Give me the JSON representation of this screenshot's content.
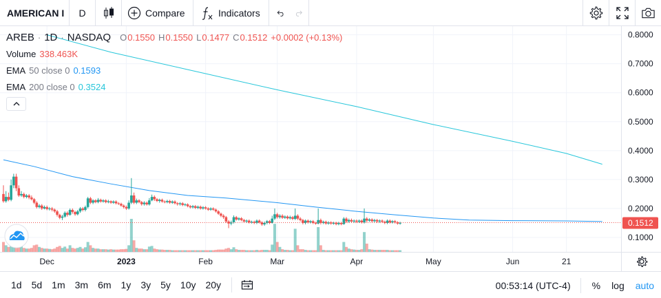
{
  "toolbar": {
    "symbol": "AMERICAN I",
    "interval": "D",
    "compare_label": "Compare",
    "indicators_label": "Indicators"
  },
  "legend": {
    "symbol": "AREB",
    "interval": "1D",
    "exchange": "NASDAQ",
    "o_key": "O",
    "o_val": "0.1550",
    "h_key": "H",
    "h_val": "0.1550",
    "l_key": "L",
    "l_val": "0.1477",
    "c_key": "C",
    "c_val": "0.1512",
    "change": "+0.0002 (+0.13%)",
    "volume_name": "Volume",
    "volume_val": "338.463K",
    "ema50_name": "EMA",
    "ema50_params": "50 close 0",
    "ema50_val": "0.1593",
    "ema200_name": "EMA",
    "ema200_params": "200 close 0",
    "ema200_val": "0.3524"
  },
  "colors": {
    "up": "#26a69a",
    "down": "#ef5350",
    "ema50": "#2196f3",
    "ema200": "#26c6da",
    "price_label_bg": "#ef5350"
  },
  "chart_data": {
    "type": "candlestick",
    "ylim": [
      0.05,
      0.83
    ],
    "y_ticks": [
      "0.8000",
      "0.7000",
      "0.6000",
      "0.5000",
      "0.4000",
      "0.3000",
      "0.2000",
      "0.1000"
    ],
    "y_tick_values": [
      0.8,
      0.7,
      0.6,
      0.5,
      0.4,
      0.3,
      0.2,
      0.1
    ],
    "x_ticks": [
      "Dec",
      "2023",
      "Feb",
      "Mar",
      "Apr",
      "May",
      "Jun",
      "21"
    ],
    "x_tick_days": [
      5,
      36,
      67,
      95,
      126,
      156,
      187,
      208
    ],
    "x_range_days": [
      -12,
      228
    ],
    "last_price": 0.1512,
    "last_price_label": "0.1512",
    "ema200_points": [
      [
        5,
        0.8
      ],
      [
        30,
        0.74
      ],
      [
        60,
        0.68
      ],
      [
        95,
        0.61
      ],
      [
        126,
        0.552
      ],
      [
        156,
        0.49
      ],
      [
        187,
        0.432
      ],
      [
        208,
        0.39
      ],
      [
        222,
        0.353
      ]
    ],
    "ema50_points": [
      [
        -12,
        0.368
      ],
      [
        0,
        0.345
      ],
      [
        15,
        0.31
      ],
      [
        30,
        0.285
      ],
      [
        45,
        0.262
      ],
      [
        60,
        0.245
      ],
      [
        75,
        0.236
      ],
      [
        95,
        0.22
      ],
      [
        110,
        0.205
      ],
      [
        126,
        0.19
      ],
      [
        141,
        0.178
      ],
      [
        156,
        0.167
      ],
      [
        170,
        0.16
      ],
      [
        187,
        0.158
      ],
      [
        208,
        0.157
      ],
      [
        222,
        0.155
      ]
    ],
    "candles": [
      [
        -12,
        0.25,
        0.225,
        0.28,
        0.22,
        0.3
      ],
      [
        -11,
        0.225,
        0.24,
        0.26,
        0.22,
        0.2
      ],
      [
        -10,
        0.24,
        0.23,
        0.255,
        0.225,
        0.15
      ],
      [
        -9,
        0.23,
        0.28,
        0.3,
        0.225,
        0.45
      ],
      [
        -8,
        0.28,
        0.31,
        0.32,
        0.27,
        0.6
      ],
      [
        -7,
        0.31,
        0.27,
        0.32,
        0.26,
        0.4
      ],
      [
        -6,
        0.27,
        0.245,
        0.28,
        0.24,
        0.25
      ],
      [
        -5,
        0.245,
        0.25,
        0.26,
        0.24,
        0.18
      ],
      [
        -4,
        0.25,
        0.24,
        0.255,
        0.235,
        0.12
      ],
      [
        -3,
        0.24,
        0.245,
        0.25,
        0.235,
        0.1
      ],
      [
        -2,
        0.245,
        0.238,
        0.25,
        0.232,
        0.1
      ],
      [
        -1,
        0.238,
        0.232,
        0.245,
        0.228,
        0.12
      ],
      [
        0,
        0.232,
        0.22,
        0.236,
        0.215,
        0.2
      ],
      [
        1,
        0.22,
        0.205,
        0.225,
        0.2,
        0.22
      ],
      [
        2,
        0.205,
        0.21,
        0.215,
        0.2,
        0.15
      ],
      [
        3,
        0.21,
        0.2,
        0.215,
        0.195,
        0.12
      ],
      [
        4,
        0.2,
        0.205,
        0.21,
        0.197,
        0.1
      ],
      [
        5,
        0.205,
        0.198,
        0.21,
        0.194,
        0.1
      ],
      [
        6,
        0.198,
        0.2,
        0.205,
        0.193,
        0.09
      ],
      [
        7,
        0.2,
        0.196,
        0.205,
        0.19,
        0.08
      ],
      [
        8,
        0.196,
        0.19,
        0.2,
        0.185,
        0.1
      ],
      [
        9,
        0.19,
        0.178,
        0.195,
        0.172,
        0.15
      ],
      [
        10,
        0.178,
        0.168,
        0.182,
        0.163,
        0.18
      ],
      [
        11,
        0.168,
        0.172,
        0.178,
        0.16,
        0.12
      ],
      [
        12,
        0.172,
        0.185,
        0.19,
        0.168,
        0.16
      ],
      [
        13,
        0.185,
        0.178,
        0.19,
        0.172,
        0.1
      ],
      [
        14,
        0.178,
        0.195,
        0.2,
        0.175,
        0.2
      ],
      [
        15,
        0.195,
        0.188,
        0.2,
        0.182,
        0.12
      ],
      [
        16,
        0.188,
        0.18,
        0.192,
        0.175,
        0.1
      ],
      [
        17,
        0.18,
        0.19,
        0.195,
        0.176,
        0.12
      ],
      [
        18,
        0.19,
        0.2,
        0.205,
        0.185,
        0.15
      ],
      [
        19,
        0.2,
        0.195,
        0.205,
        0.19,
        0.1
      ],
      [
        20,
        0.195,
        0.205,
        0.21,
        0.19,
        0.14
      ],
      [
        21,
        0.205,
        0.235,
        0.24,
        0.2,
        0.3
      ],
      [
        22,
        0.235,
        0.22,
        0.24,
        0.215,
        0.2
      ],
      [
        23,
        0.22,
        0.228,
        0.232,
        0.215,
        0.12
      ],
      [
        24,
        0.228,
        0.222,
        0.232,
        0.218,
        0.1
      ],
      [
        25,
        0.222,
        0.23,
        0.236,
        0.218,
        0.1
      ],
      [
        26,
        0.23,
        0.224,
        0.234,
        0.22,
        0.08
      ],
      [
        27,
        0.224,
        0.228,
        0.232,
        0.22,
        0.08
      ],
      [
        28,
        0.228,
        0.222,
        0.232,
        0.218,
        0.08
      ],
      [
        29,
        0.222,
        0.225,
        0.23,
        0.218,
        0.07
      ],
      [
        30,
        0.225,
        0.22,
        0.228,
        0.216,
        0.08
      ],
      [
        31,
        0.22,
        0.224,
        0.228,
        0.216,
        0.07
      ],
      [
        32,
        0.224,
        0.218,
        0.228,
        0.214,
        0.07
      ],
      [
        33,
        0.218,
        0.216,
        0.222,
        0.212,
        0.07
      ],
      [
        34,
        0.216,
        0.21,
        0.22,
        0.206,
        0.08
      ],
      [
        35,
        0.21,
        0.205,
        0.214,
        0.2,
        0.08
      ],
      [
        36,
        0.205,
        0.2,
        0.21,
        0.195,
        0.09
      ],
      [
        37,
        0.2,
        0.22,
        0.228,
        0.196,
        0.2
      ],
      [
        38,
        0.22,
        0.245,
        0.305,
        0.215,
        1.0
      ],
      [
        39,
        0.245,
        0.22,
        0.255,
        0.215,
        0.35
      ],
      [
        40,
        0.22,
        0.228,
        0.234,
        0.215,
        0.12
      ],
      [
        41,
        0.228,
        0.222,
        0.232,
        0.218,
        0.1
      ],
      [
        42,
        0.222,
        0.215,
        0.226,
        0.21,
        0.1
      ],
      [
        43,
        0.215,
        0.22,
        0.225,
        0.21,
        0.08
      ],
      [
        44,
        0.22,
        0.214,
        0.224,
        0.21,
        0.08
      ],
      [
        45,
        0.214,
        0.228,
        0.236,
        0.21,
        0.16
      ],
      [
        46,
        0.228,
        0.24,
        0.248,
        0.225,
        0.18
      ],
      [
        47,
        0.24,
        0.232,
        0.245,
        0.226,
        0.1
      ],
      [
        48,
        0.232,
        0.226,
        0.236,
        0.222,
        0.08
      ],
      [
        49,
        0.226,
        0.23,
        0.234,
        0.22,
        0.07
      ],
      [
        50,
        0.23,
        0.224,
        0.234,
        0.22,
        0.07
      ],
      [
        51,
        0.224,
        0.222,
        0.228,
        0.218,
        0.06
      ],
      [
        52,
        0.222,
        0.226,
        0.23,
        0.218,
        0.06
      ],
      [
        53,
        0.226,
        0.22,
        0.23,
        0.216,
        0.06
      ],
      [
        54,
        0.22,
        0.224,
        0.228,
        0.216,
        0.05
      ],
      [
        55,
        0.224,
        0.218,
        0.228,
        0.214,
        0.05
      ],
      [
        56,
        0.218,
        0.215,
        0.222,
        0.21,
        0.05
      ],
      [
        57,
        0.215,
        0.218,
        0.222,
        0.21,
        0.05
      ],
      [
        58,
        0.218,
        0.212,
        0.222,
        0.208,
        0.05
      ],
      [
        59,
        0.212,
        0.214,
        0.218,
        0.208,
        0.05
      ],
      [
        60,
        0.214,
        0.208,
        0.218,
        0.204,
        0.05
      ],
      [
        61,
        0.208,
        0.204,
        0.212,
        0.2,
        0.05
      ],
      [
        62,
        0.204,
        0.208,
        0.212,
        0.2,
        0.05
      ],
      [
        63,
        0.208,
        0.202,
        0.212,
        0.198,
        0.05
      ],
      [
        64,
        0.202,
        0.206,
        0.21,
        0.198,
        0.05
      ],
      [
        65,
        0.206,
        0.2,
        0.21,
        0.196,
        0.05
      ],
      [
        66,
        0.2,
        0.204,
        0.208,
        0.196,
        0.05
      ],
      [
        67,
        0.204,
        0.2,
        0.208,
        0.196,
        0.05
      ],
      [
        68,
        0.2,
        0.196,
        0.204,
        0.192,
        0.05
      ],
      [
        69,
        0.196,
        0.2,
        0.204,
        0.192,
        0.05
      ],
      [
        70,
        0.2,
        0.196,
        0.204,
        0.192,
        0.05
      ],
      [
        71,
        0.196,
        0.19,
        0.2,
        0.186,
        0.06
      ],
      [
        72,
        0.19,
        0.182,
        0.194,
        0.178,
        0.07
      ],
      [
        73,
        0.182,
        0.175,
        0.186,
        0.17,
        0.07
      ],
      [
        74,
        0.175,
        0.17,
        0.18,
        0.164,
        0.07
      ],
      [
        75,
        0.17,
        0.155,
        0.174,
        0.15,
        0.1
      ],
      [
        76,
        0.155,
        0.148,
        0.16,
        0.132,
        0.12
      ],
      [
        77,
        0.148,
        0.152,
        0.158,
        0.142,
        0.08
      ],
      [
        78,
        0.152,
        0.17,
        0.176,
        0.148,
        0.14
      ],
      [
        79,
        0.17,
        0.162,
        0.174,
        0.158,
        0.08
      ],
      [
        80,
        0.162,
        0.166,
        0.17,
        0.158,
        0.06
      ],
      [
        81,
        0.166,
        0.16,
        0.17,
        0.156,
        0.06
      ],
      [
        82,
        0.16,
        0.155,
        0.164,
        0.15,
        0.06
      ],
      [
        83,
        0.155,
        0.158,
        0.162,
        0.15,
        0.05
      ],
      [
        84,
        0.158,
        0.152,
        0.162,
        0.148,
        0.05
      ],
      [
        85,
        0.152,
        0.154,
        0.158,
        0.148,
        0.05
      ],
      [
        86,
        0.154,
        0.15,
        0.158,
        0.146,
        0.05
      ],
      [
        87,
        0.15,
        0.158,
        0.162,
        0.146,
        0.06
      ],
      [
        88,
        0.158,
        0.152,
        0.162,
        0.148,
        0.05
      ],
      [
        89,
        0.152,
        0.145,
        0.156,
        0.14,
        0.06
      ],
      [
        90,
        0.145,
        0.15,
        0.155,
        0.14,
        0.06
      ],
      [
        91,
        0.15,
        0.156,
        0.16,
        0.145,
        0.06
      ],
      [
        92,
        0.156,
        0.15,
        0.16,
        0.146,
        0.05
      ],
      [
        93,
        0.15,
        0.165,
        0.175,
        0.148,
        0.22
      ],
      [
        94,
        0.165,
        0.18,
        0.2,
        0.16,
        0.85
      ],
      [
        95,
        0.18,
        0.17,
        0.185,
        0.165,
        0.3
      ],
      [
        96,
        0.17,
        0.175,
        0.18,
        0.165,
        0.15
      ],
      [
        97,
        0.175,
        0.168,
        0.18,
        0.164,
        0.08
      ],
      [
        98,
        0.168,
        0.172,
        0.176,
        0.164,
        0.06
      ],
      [
        99,
        0.172,
        0.166,
        0.176,
        0.162,
        0.06
      ],
      [
        100,
        0.166,
        0.17,
        0.175,
        0.162,
        0.05
      ],
      [
        101,
        0.17,
        0.164,
        0.174,
        0.16,
        0.05
      ],
      [
        102,
        0.164,
        0.175,
        0.2,
        0.16,
        0.7
      ],
      [
        103,
        0.175,
        0.165,
        0.18,
        0.16,
        0.2
      ],
      [
        104,
        0.165,
        0.16,
        0.17,
        0.155,
        0.08
      ],
      [
        105,
        0.16,
        0.15,
        0.164,
        0.145,
        0.08
      ],
      [
        106,
        0.15,
        0.158,
        0.162,
        0.145,
        0.06
      ],
      [
        107,
        0.158,
        0.152,
        0.162,
        0.148,
        0.05
      ],
      [
        108,
        0.152,
        0.156,
        0.16,
        0.148,
        0.05
      ],
      [
        109,
        0.156,
        0.15,
        0.16,
        0.146,
        0.05
      ],
      [
        110,
        0.15,
        0.148,
        0.154,
        0.144,
        0.05
      ],
      [
        111,
        0.148,
        0.16,
        0.2,
        0.145,
        0.75
      ],
      [
        112,
        0.16,
        0.15,
        0.165,
        0.145,
        0.2
      ],
      [
        113,
        0.15,
        0.154,
        0.158,
        0.146,
        0.06
      ],
      [
        114,
        0.154,
        0.148,
        0.158,
        0.144,
        0.05
      ],
      [
        115,
        0.148,
        0.152,
        0.156,
        0.144,
        0.05
      ],
      [
        116,
        0.152,
        0.148,
        0.156,
        0.144,
        0.05
      ],
      [
        117,
        0.148,
        0.15,
        0.154,
        0.144,
        0.05
      ],
      [
        118,
        0.15,
        0.146,
        0.154,
        0.142,
        0.05
      ],
      [
        119,
        0.146,
        0.15,
        0.154,
        0.142,
        0.05
      ],
      [
        120,
        0.15,
        0.146,
        0.154,
        0.142,
        0.05
      ],
      [
        121,
        0.146,
        0.165,
        0.17,
        0.144,
        0.3
      ],
      [
        122,
        0.165,
        0.155,
        0.17,
        0.15,
        0.15
      ],
      [
        123,
        0.155,
        0.16,
        0.165,
        0.15,
        0.1
      ],
      [
        124,
        0.16,
        0.155,
        0.165,
        0.15,
        0.08
      ],
      [
        125,
        0.155,
        0.158,
        0.162,
        0.15,
        0.07
      ],
      [
        126,
        0.158,
        0.154,
        0.162,
        0.15,
        0.06
      ],
      [
        127,
        0.154,
        0.158,
        0.162,
        0.15,
        0.06
      ],
      [
        128,
        0.158,
        0.152,
        0.162,
        0.148,
        0.08
      ],
      [
        129,
        0.152,
        0.165,
        0.2,
        0.148,
        0.6
      ],
      [
        130,
        0.165,
        0.158,
        0.17,
        0.152,
        0.25
      ],
      [
        131,
        0.158,
        0.162,
        0.166,
        0.154,
        0.08
      ],
      [
        132,
        0.162,
        0.156,
        0.166,
        0.152,
        0.07
      ],
      [
        133,
        0.156,
        0.16,
        0.164,
        0.152,
        0.06
      ],
      [
        134,
        0.16,
        0.155,
        0.164,
        0.15,
        0.06
      ],
      [
        135,
        0.155,
        0.158,
        0.162,
        0.15,
        0.06
      ],
      [
        136,
        0.158,
        0.154,
        0.162,
        0.15,
        0.06
      ],
      [
        137,
        0.154,
        0.15,
        0.158,
        0.146,
        0.06
      ],
      [
        138,
        0.15,
        0.158,
        0.162,
        0.146,
        0.06
      ],
      [
        139,
        0.158,
        0.152,
        0.162,
        0.148,
        0.05
      ],
      [
        140,
        0.152,
        0.156,
        0.16,
        0.148,
        0.05
      ],
      [
        141,
        0.156,
        0.152,
        0.16,
        0.148,
        0.05
      ],
      [
        142,
        0.152,
        0.148,
        0.156,
        0.144,
        0.05
      ],
      [
        143,
        0.148,
        0.15,
        0.154,
        0.144,
        0.05
      ]
    ]
  },
  "axis": {
    "goto_icon": "gear-icon"
  },
  "ranges": [
    "1d",
    "5d",
    "1m",
    "3m",
    "6m",
    "1y",
    "3y",
    "5y",
    "10y",
    "20y"
  ],
  "footer": {
    "time": "00:53:14 (UTC-4)",
    "percent": "%",
    "log": "log",
    "auto": "auto"
  },
  "icons": {
    "chart_type": "candles-icon",
    "compare": "plus-circle-icon",
    "indicators": "fx-icon",
    "undo": "undo-icon",
    "redo": "redo-icon",
    "settings": "gear-icon",
    "fullscreen": "fullscreen-icon",
    "snapshot": "camera-icon",
    "date_range": "calendar-icon",
    "logo": "cloud-logo-icon"
  }
}
